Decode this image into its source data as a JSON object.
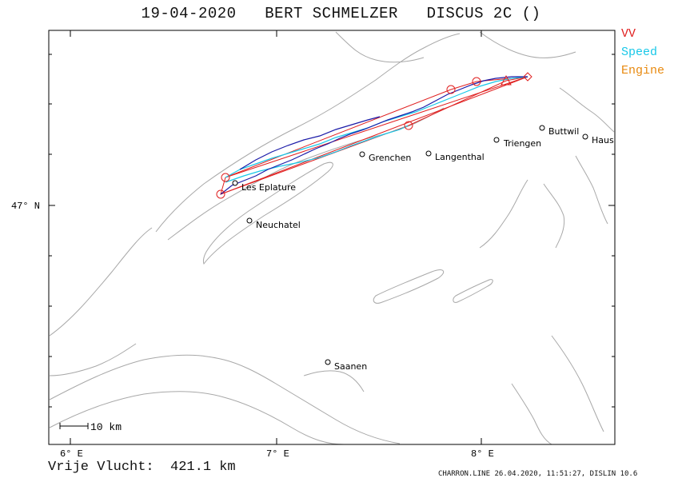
{
  "title": "19-04-2020   BERT SCHMELZER   DISCUS 2C ()",
  "legend": [
    {
      "label": "VV",
      "color": "#e02020"
    },
    {
      "label": "Speed",
      "color": "#18c8e8"
    },
    {
      "label": "Engine",
      "color": "#e88a10"
    }
  ],
  "axes": {
    "x_ticks": [
      "6° E",
      "7° E",
      "8° E"
    ],
    "y_ticks": [
      "47° N"
    ]
  },
  "scale_label": "10 km",
  "cities": [
    {
      "name": "Les Eplature"
    },
    {
      "name": "Neuchatel"
    },
    {
      "name": "Grenchen"
    },
    {
      "name": "Langenthal"
    },
    {
      "name": "Triengen"
    },
    {
      "name": "Buttwil"
    },
    {
      "name": "Haus"
    },
    {
      "name": "Saanen"
    }
  ],
  "distance_text": "Vrije Vlucht:  421.1 km",
  "footer_text": "CHARRON.LINE 26.04.2020, 11:51:27, DISLIN 10.6",
  "colors": {
    "terrain": "#a8a8a8",
    "track_main": "#1a1aa8",
    "track_speed": "#18c8e8",
    "task": "#e02020",
    "frame": "#000000"
  }
}
